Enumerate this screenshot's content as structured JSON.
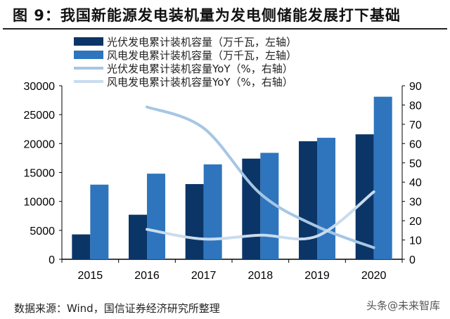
{
  "title": "图 9：我国新能源发电装机量为发电侧储能发展打下基础",
  "source": "数据来源：Wind，国信证券经济研究所整理",
  "watermark": "头条@未来智库",
  "chart_data": {
    "type": "bar",
    "categories": [
      "2015",
      "2016",
      "2017",
      "2018",
      "2019",
      "2020"
    ],
    "series": [
      {
        "name": "光伏发电累计装机容量（万千瓦，左轴）",
        "type": "bar",
        "axis": "left",
        "color": "#0b3566",
        "values": [
          4300,
          7700,
          13000,
          17400,
          20400,
          21600
        ]
      },
      {
        "name": "风电发电累计装机容量（万千瓦，左轴）",
        "type": "bar",
        "axis": "left",
        "color": "#2e75bd",
        "values": [
          12900,
          14800,
          16400,
          18400,
          21000,
          28100
        ]
      },
      {
        "name": "光伏发电累计装机容量YoY（%，右轴）",
        "type": "line",
        "axis": "right",
        "color": "#a6c6e4",
        "values": [
          null,
          79,
          68,
          34,
          17,
          6
        ]
      },
      {
        "name": "风电发电累计装机容量YoY（%，右轴）",
        "type": "line",
        "axis": "right",
        "color": "#c9dcee",
        "values": [
          null,
          15.5,
          10.5,
          12.5,
          12,
          35
        ]
      }
    ],
    "y_left": {
      "range": [
        0,
        30000
      ],
      "ticks": [
        0,
        5000,
        10000,
        15000,
        20000,
        25000,
        30000
      ]
    },
    "y_right": {
      "range": [
        0,
        90
      ],
      "ticks": [
        0,
        10,
        20,
        30,
        40,
        50,
        60,
        70,
        80,
        90
      ]
    },
    "grid": false,
    "legend": "top"
  }
}
